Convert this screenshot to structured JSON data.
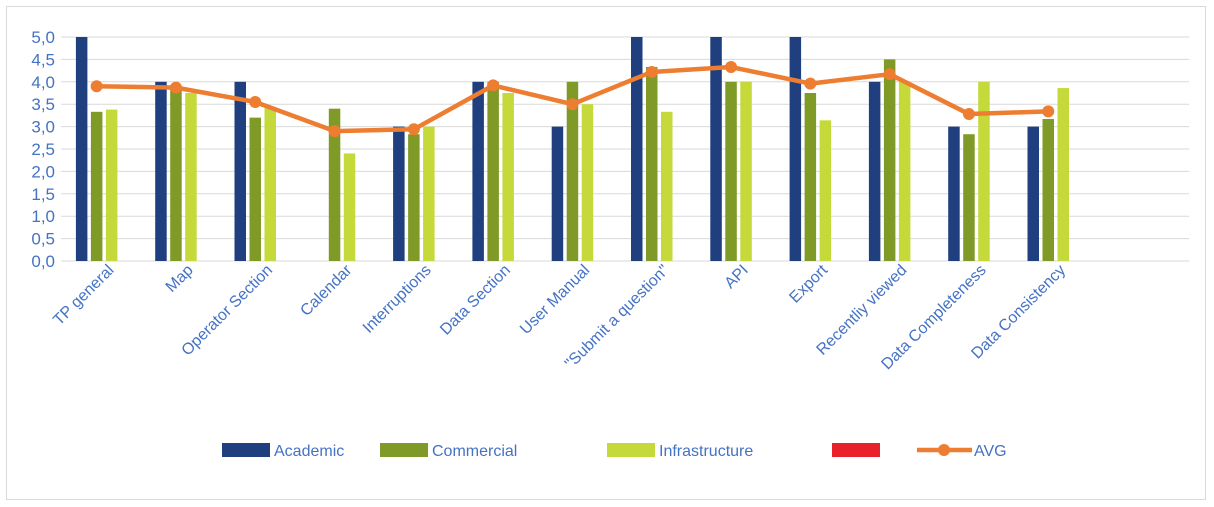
{
  "chart_data": {
    "type": "bar",
    "title": "",
    "xlabel": "",
    "ylabel": "",
    "ylim": [
      0,
      5
    ],
    "ytick_step": 0.5,
    "yticks": [
      "0,0",
      "0,5",
      "1,0",
      "1,5",
      "2,0",
      "2,5",
      "3,0",
      "3,5",
      "4,0",
      "4,5",
      "5,0"
    ],
    "grid": true,
    "legend_position": "bottom",
    "categories": [
      "TP general",
      "Map",
      "Operator Section",
      "Calendar",
      "Interruptions",
      "Data Section",
      "User Manual",
      "\"Submit a question\"",
      "API",
      "Export",
      "Recentliy viewed",
      "Data Completeness",
      "Data Consistency"
    ],
    "series": [
      {
        "name": "Academic",
        "type": "bar",
        "color": "#203f7f",
        "values": [
          5.0,
          4.0,
          4.0,
          null,
          3.0,
          4.0,
          3.0,
          5.0,
          5.0,
          5.0,
          4.0,
          3.0,
          3.0
        ]
      },
      {
        "name": "Commercial",
        "type": "bar",
        "color": "#7f9a26",
        "values": [
          3.33,
          3.9,
          3.2,
          3.4,
          2.83,
          4.0,
          4.0,
          4.33,
          4.0,
          3.75,
          4.5,
          2.83,
          3.17
        ]
      },
      {
        "name": "Infrastructure",
        "type": "bar",
        "color": "#c5d93b",
        "values": [
          3.38,
          3.75,
          3.44,
          2.4,
          3.0,
          3.75,
          3.5,
          3.33,
          4.0,
          3.14,
          4.0,
          4.0,
          3.86
        ]
      },
      {
        "name": "",
        "type": "bar",
        "color": "#e8212b",
        "values": [
          null,
          null,
          null,
          null,
          null,
          null,
          null,
          null,
          null,
          null,
          null,
          null,
          null
        ]
      },
      {
        "name": "AVG",
        "type": "line",
        "color": "#ed7d31",
        "values": [
          3.9,
          3.87,
          3.55,
          2.9,
          2.94,
          3.92,
          3.5,
          4.22,
          4.33,
          3.96,
          4.17,
          3.28,
          3.34
        ]
      }
    ]
  }
}
